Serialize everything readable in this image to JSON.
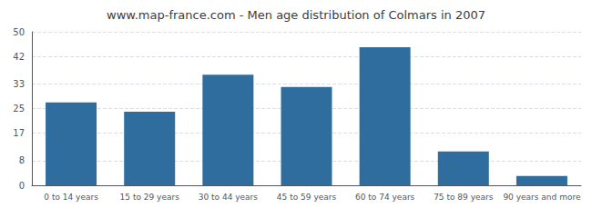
{
  "chart_data": {
    "type": "bar",
    "title": "www.map-france.com - Men age distribution of Colmars in 2007",
    "categories": [
      "0 to 14 years",
      "15 to 29 years",
      "30 to 44 years",
      "45 to 59 years",
      "60 to 74 years",
      "75 to 89 years",
      "90 years and more"
    ],
    "values": [
      27,
      24,
      36,
      32,
      45,
      11,
      3
    ],
    "color": "#2e6d9e",
    "ylim": [
      0,
      50
    ],
    "yticks": [
      0,
      8,
      17,
      25,
      33,
      42,
      50
    ],
    "grid": true
  }
}
